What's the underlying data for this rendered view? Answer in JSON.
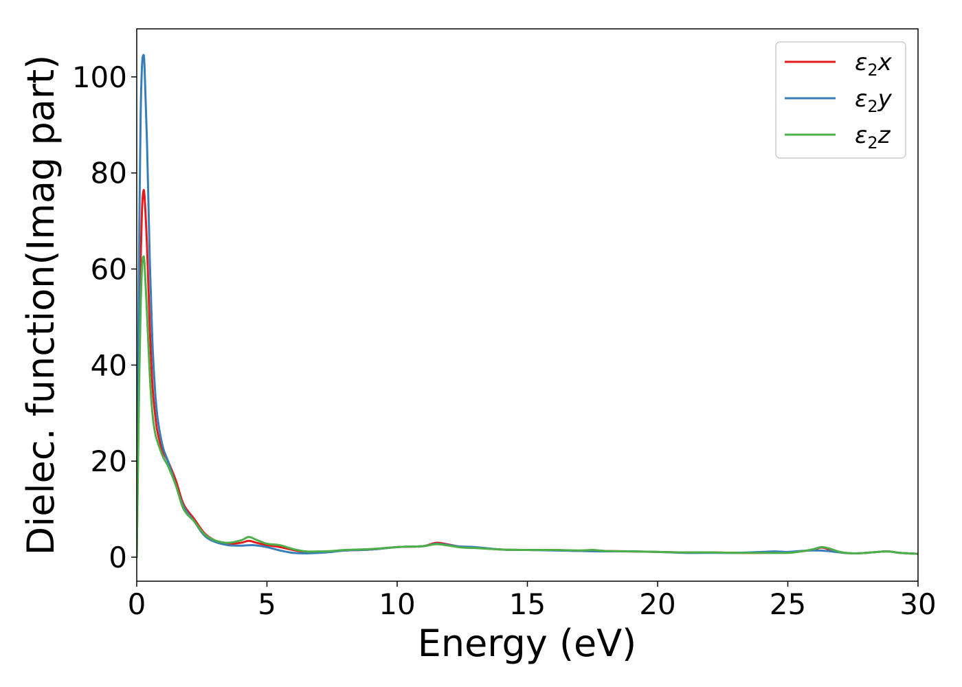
{
  "chart_data": {
    "type": "line",
    "xlabel": "Energy (eV)",
    "ylabel": "Dielec. function(Imag part)",
    "xlim": [
      0,
      30
    ],
    "ylim": [
      -5,
      110
    ],
    "x_ticks": [
      0,
      5,
      10,
      15,
      20,
      25,
      30
    ],
    "y_ticks": [
      0,
      20,
      40,
      60,
      80,
      100
    ],
    "grid": false,
    "legend_position": "top-right",
    "series": [
      {
        "name": "ε₂x",
        "legend_base": "ε",
        "legend_sub": "2",
        "legend_suffix": "x",
        "color": "#e41a1c",
        "points": [
          [
            0,
            0
          ],
          [
            0.05,
            22
          ],
          [
            0.1,
            45
          ],
          [
            0.15,
            62
          ],
          [
            0.2,
            72
          ],
          [
            0.25,
            76
          ],
          [
            0.3,
            75
          ],
          [
            0.4,
            64
          ],
          [
            0.5,
            48
          ],
          [
            0.6,
            36
          ],
          [
            0.7,
            30
          ],
          [
            0.8,
            26
          ],
          [
            1.0,
            22
          ],
          [
            1.2,
            20
          ],
          [
            1.5,
            16
          ],
          [
            1.8,
            11
          ],
          [
            2.2,
            8
          ],
          [
            2.6,
            5
          ],
          [
            3.0,
            3.5
          ],
          [
            3.5,
            2.8
          ],
          [
            4.0,
            3.0
          ],
          [
            4.3,
            3.4
          ],
          [
            4.6,
            3.0
          ],
          [
            5.0,
            2.5
          ],
          [
            5.5,
            2.1
          ],
          [
            6.0,
            1.5
          ],
          [
            6.5,
            1.1
          ],
          [
            7.0,
            1.1
          ],
          [
            7.5,
            1.2
          ],
          [
            8.0,
            1.4
          ],
          [
            9.0,
            1.6
          ],
          [
            10.0,
            2.1
          ],
          [
            11.0,
            2.3
          ],
          [
            11.5,
            3.0
          ],
          [
            12.0,
            2.6
          ],
          [
            12.5,
            2.1
          ],
          [
            13.0,
            2.0
          ],
          [
            14.0,
            1.6
          ],
          [
            15.0,
            1.5
          ],
          [
            16.0,
            1.5
          ],
          [
            17.0,
            1.3
          ],
          [
            17.5,
            1.4
          ],
          [
            18.0,
            1.3
          ],
          [
            19.0,
            1.2
          ],
          [
            20.0,
            1.1
          ],
          [
            21.0,
            1.0
          ],
          [
            22.0,
            1.0
          ],
          [
            23.0,
            0.9
          ],
          [
            24.0,
            0.9
          ],
          [
            25.0,
            1.0
          ],
          [
            25.5,
            1.2
          ],
          [
            26.0,
            1.6
          ],
          [
            26.3,
            2.0
          ],
          [
            26.6,
            1.6
          ],
          [
            27.0,
            1.0
          ],
          [
            27.5,
            0.8
          ],
          [
            28.0,
            0.9
          ],
          [
            28.8,
            1.2
          ],
          [
            29.3,
            0.9
          ],
          [
            30.0,
            0.7
          ]
        ]
      },
      {
        "name": "ε₂y",
        "legend_base": "ε",
        "legend_sub": "2",
        "legend_suffix": "y",
        "color": "#377eb8",
        "points": [
          [
            0,
            0
          ],
          [
            0.05,
            35
          ],
          [
            0.1,
            70
          ],
          [
            0.15,
            92
          ],
          [
            0.2,
            102
          ],
          [
            0.25,
            104.5
          ],
          [
            0.3,
            102
          ],
          [
            0.4,
            85
          ],
          [
            0.5,
            62
          ],
          [
            0.6,
            45
          ],
          [
            0.7,
            35
          ],
          [
            0.8,
            29
          ],
          [
            1.0,
            23
          ],
          [
            1.2,
            20
          ],
          [
            1.5,
            15
          ],
          [
            1.8,
            10.5
          ],
          [
            2.2,
            7.5
          ],
          [
            2.6,
            4.5
          ],
          [
            3.0,
            3.2
          ],
          [
            3.5,
            2.5
          ],
          [
            4.0,
            2.4
          ],
          [
            4.5,
            2.5
          ],
          [
            5.0,
            2.1
          ],
          [
            5.5,
            1.4
          ],
          [
            6.0,
            0.9
          ],
          [
            6.5,
            0.8
          ],
          [
            7.0,
            0.9
          ],
          [
            7.5,
            1.1
          ],
          [
            8.0,
            1.4
          ],
          [
            9.0,
            1.6
          ],
          [
            10.0,
            2.1
          ],
          [
            11.0,
            2.3
          ],
          [
            11.5,
            2.8
          ],
          [
            12.0,
            2.5
          ],
          [
            12.5,
            2.2
          ],
          [
            13.0,
            2.1
          ],
          [
            14.0,
            1.6
          ],
          [
            15.0,
            1.5
          ],
          [
            16.0,
            1.4
          ],
          [
            17.0,
            1.3
          ],
          [
            18.0,
            1.2
          ],
          [
            19.0,
            1.2
          ],
          [
            20.0,
            1.1
          ],
          [
            21.0,
            0.9
          ],
          [
            22.0,
            0.9
          ],
          [
            23.0,
            0.9
          ],
          [
            24.0,
            1.1
          ],
          [
            24.5,
            1.2
          ],
          [
            25.0,
            1.1
          ],
          [
            25.5,
            1.3
          ],
          [
            26.0,
            1.4
          ],
          [
            26.5,
            1.3
          ],
          [
            27.0,
            1.0
          ],
          [
            27.5,
            0.8
          ],
          [
            28.0,
            0.9
          ],
          [
            28.8,
            1.2
          ],
          [
            29.3,
            0.9
          ],
          [
            30.0,
            0.7
          ]
        ]
      },
      {
        "name": "ε₂z",
        "legend_base": "ε",
        "legend_sub": "2",
        "legend_suffix": "z",
        "color": "#4daf4a",
        "points": [
          [
            0,
            0
          ],
          [
            0.05,
            20
          ],
          [
            0.1,
            38
          ],
          [
            0.15,
            52
          ],
          [
            0.2,
            60
          ],
          [
            0.25,
            62.5
          ],
          [
            0.3,
            61
          ],
          [
            0.4,
            50
          ],
          [
            0.5,
            38
          ],
          [
            0.6,
            30
          ],
          [
            0.7,
            26
          ],
          [
            0.8,
            24
          ],
          [
            1.0,
            21
          ],
          [
            1.2,
            19
          ],
          [
            1.5,
            15
          ],
          [
            1.8,
            10
          ],
          [
            2.2,
            7.5
          ],
          [
            2.6,
            4.8
          ],
          [
            3.0,
            3.5
          ],
          [
            3.5,
            3.0
          ],
          [
            4.0,
            3.5
          ],
          [
            4.3,
            4.2
          ],
          [
            4.6,
            3.6
          ],
          [
            5.0,
            2.8
          ],
          [
            5.5,
            2.5
          ],
          [
            6.0,
            1.7
          ],
          [
            6.5,
            1.2
          ],
          [
            7.0,
            1.2
          ],
          [
            7.5,
            1.3
          ],
          [
            8.0,
            1.5
          ],
          [
            9.0,
            1.7
          ],
          [
            10.0,
            2.1
          ],
          [
            11.0,
            2.3
          ],
          [
            11.5,
            2.7
          ],
          [
            12.0,
            2.4
          ],
          [
            12.5,
            2.0
          ],
          [
            13.0,
            1.9
          ],
          [
            14.0,
            1.6
          ],
          [
            15.0,
            1.5
          ],
          [
            16.0,
            1.5
          ],
          [
            17.0,
            1.4
          ],
          [
            17.5,
            1.5
          ],
          [
            18.0,
            1.3
          ],
          [
            19.0,
            1.2
          ],
          [
            20.0,
            1.1
          ],
          [
            21.0,
            1.0
          ],
          [
            22.0,
            1.0
          ],
          [
            23.0,
            0.9
          ],
          [
            24.0,
            0.9
          ],
          [
            25.0,
            0.9
          ],
          [
            25.5,
            1.2
          ],
          [
            26.0,
            1.7
          ],
          [
            26.3,
            2.1
          ],
          [
            26.6,
            1.8
          ],
          [
            27.0,
            1.1
          ],
          [
            27.5,
            0.8
          ],
          [
            28.0,
            0.9
          ],
          [
            28.8,
            1.2
          ],
          [
            29.3,
            0.9
          ],
          [
            30.0,
            0.7
          ]
        ]
      }
    ]
  }
}
